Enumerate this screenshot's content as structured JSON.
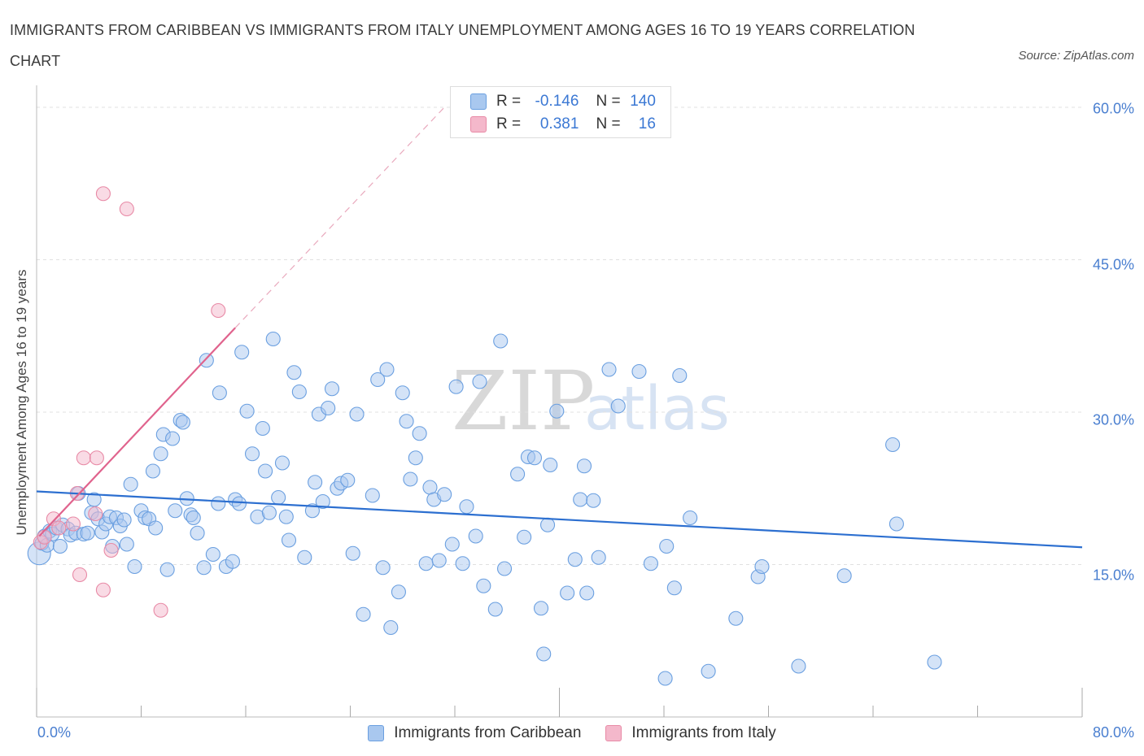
{
  "title_line1": "IMMIGRANTS FROM CARIBBEAN VS IMMIGRANTS FROM ITALY UNEMPLOYMENT AMONG AGES 16 TO 19 YEARS CORRELATION",
  "title_line2": "CHART",
  "source": "Source: ZipAtlas.com",
  "watermark": {
    "zip": "ZIP",
    "atlas": "atlas"
  },
  "colors": {
    "blue_fill": "#a9c8ef",
    "blue_stroke": "#6a9fe0",
    "blue_line": "#2c6fd0",
    "pink_fill": "#f4b8cb",
    "pink_stroke": "#e88aa6",
    "pink_line": "#e0638d",
    "tick_text": "#4a7fd0",
    "grid": "#e0e0e0"
  },
  "legend_top": {
    "rows": [
      {
        "r_label": "R =",
        "r_value": "-0.146",
        "n_label": "N =",
        "n_value": "140"
      },
      {
        "r_label": "R =",
        "r_value": "0.381",
        "n_label": "N =",
        "n_value": "16"
      }
    ]
  },
  "chart_data": {
    "type": "scatter",
    "title": "IMMIGRANTS FROM CARIBBEAN VS IMMIGRANTS FROM ITALY UNEMPLOYMENT AMONG AGES 16 TO 19 YEARS CORRELATION CHART",
    "xlabel": "",
    "ylabel": "Unemployment Among Ages 16 to 19 years",
    "xlim": [
      0,
      80
    ],
    "ylim": [
      0,
      60
    ],
    "x_tick_labels": [
      "0.0%",
      "80.0%"
    ],
    "y_ticks": [
      15,
      30,
      45,
      60
    ],
    "y_tick_labels": [
      "15.0%",
      "30.0%",
      "45.0%",
      "60.0%"
    ],
    "legend_position": "bottom-center",
    "series": [
      {
        "name": "Immigrants from Caribbean",
        "R": -0.146,
        "N": 140,
        "trend": {
          "x": [
            0,
            80
          ],
          "y": [
            22.2,
            16.7
          ]
        },
        "points": [
          [
            0.2,
            16.1
          ],
          [
            0.4,
            17.1
          ],
          [
            0.6,
            17.8
          ],
          [
            0.8,
            16.9
          ],
          [
            1.0,
            18.3
          ],
          [
            1.2,
            18.0
          ],
          [
            1.5,
            18.6
          ],
          [
            1.8,
            16.8
          ],
          [
            2.0,
            18.9
          ],
          [
            2.4,
            18.5
          ],
          [
            2.6,
            17.9
          ],
          [
            3.0,
            18.1
          ],
          [
            3.2,
            22.0
          ],
          [
            3.6,
            18.0
          ],
          [
            3.9,
            18.1
          ],
          [
            4.2,
            20.1
          ],
          [
            4.4,
            21.4
          ],
          [
            4.7,
            19.5
          ],
          [
            5.0,
            18.2
          ],
          [
            5.3,
            19.0
          ],
          [
            5.6,
            19.7
          ],
          [
            5.8,
            16.8
          ],
          [
            6.1,
            19.6
          ],
          [
            6.4,
            18.8
          ],
          [
            6.7,
            19.4
          ],
          [
            6.9,
            17.0
          ],
          [
            7.2,
            22.9
          ],
          [
            7.5,
            14.8
          ],
          [
            8.0,
            20.3
          ],
          [
            8.3,
            19.6
          ],
          [
            8.6,
            19.5
          ],
          [
            8.9,
            24.2
          ],
          [
            9.1,
            18.6
          ],
          [
            9.5,
            25.9
          ],
          [
            9.7,
            27.8
          ],
          [
            10.0,
            14.5
          ],
          [
            10.4,
            27.4
          ],
          [
            10.6,
            20.3
          ],
          [
            11.0,
            29.2
          ],
          [
            11.2,
            29.0
          ],
          [
            11.5,
            21.5
          ],
          [
            11.8,
            19.9
          ],
          [
            12.0,
            19.6
          ],
          [
            12.3,
            18.1
          ],
          [
            12.8,
            14.7
          ],
          [
            13.0,
            35.1
          ],
          [
            13.5,
            16.0
          ],
          [
            13.9,
            21.0
          ],
          [
            14.0,
            31.9
          ],
          [
            14.5,
            14.8
          ],
          [
            15.0,
            15.3
          ],
          [
            15.2,
            21.4
          ],
          [
            15.5,
            21.0
          ],
          [
            15.7,
            35.9
          ],
          [
            16.1,
            30.1
          ],
          [
            16.5,
            25.9
          ],
          [
            16.9,
            19.7
          ],
          [
            17.3,
            28.4
          ],
          [
            17.5,
            24.2
          ],
          [
            17.8,
            20.1
          ],
          [
            18.1,
            37.2
          ],
          [
            18.5,
            21.6
          ],
          [
            18.8,
            25.0
          ],
          [
            19.1,
            19.7
          ],
          [
            19.3,
            17.4
          ],
          [
            19.7,
            33.9
          ],
          [
            20.1,
            32.0
          ],
          [
            20.5,
            15.7
          ],
          [
            21.1,
            20.3
          ],
          [
            21.3,
            23.1
          ],
          [
            21.6,
            29.8
          ],
          [
            21.9,
            21.2
          ],
          [
            22.3,
            30.4
          ],
          [
            22.6,
            32.3
          ],
          [
            23.0,
            22.5
          ],
          [
            23.3,
            23.0
          ],
          [
            23.8,
            23.3
          ],
          [
            24.2,
            16.1
          ],
          [
            24.5,
            29.8
          ],
          [
            25.0,
            10.1
          ],
          [
            25.7,
            21.8
          ],
          [
            26.1,
            33.2
          ],
          [
            26.5,
            14.7
          ],
          [
            26.8,
            34.2
          ],
          [
            27.1,
            8.8
          ],
          [
            27.7,
            12.3
          ],
          [
            28.0,
            31.9
          ],
          [
            28.3,
            29.1
          ],
          [
            28.6,
            23.4
          ],
          [
            29.0,
            25.5
          ],
          [
            29.3,
            27.9
          ],
          [
            29.8,
            15.1
          ],
          [
            30.1,
            22.6
          ],
          [
            30.4,
            21.4
          ],
          [
            30.8,
            15.4
          ],
          [
            31.2,
            21.9
          ],
          [
            31.8,
            17.0
          ],
          [
            32.1,
            32.5
          ],
          [
            32.6,
            15.1
          ],
          [
            32.9,
            20.7
          ],
          [
            33.6,
            17.8
          ],
          [
            33.9,
            33.0
          ],
          [
            34.2,
            12.9
          ],
          [
            35.1,
            10.6
          ],
          [
            35.5,
            37.0
          ],
          [
            35.8,
            14.6
          ],
          [
            36.8,
            23.9
          ],
          [
            37.3,
            17.7
          ],
          [
            37.6,
            25.6
          ],
          [
            38.1,
            25.5
          ],
          [
            38.6,
            10.7
          ],
          [
            38.8,
            6.2
          ],
          [
            39.1,
            18.9
          ],
          [
            39.3,
            24.8
          ],
          [
            39.8,
            30.1
          ],
          [
            40.6,
            12.2
          ],
          [
            41.2,
            15.5
          ],
          [
            41.6,
            21.4
          ],
          [
            41.9,
            24.7
          ],
          [
            42.1,
            12.2
          ],
          [
            42.6,
            21.3
          ],
          [
            43.0,
            15.7
          ],
          [
            43.8,
            34.2
          ],
          [
            44.5,
            30.6
          ],
          [
            46.1,
            34.0
          ],
          [
            47.0,
            15.1
          ],
          [
            48.1,
            3.8
          ],
          [
            48.2,
            16.8
          ],
          [
            48.8,
            12.7
          ],
          [
            49.2,
            33.6
          ],
          [
            50.0,
            19.6
          ],
          [
            51.4,
            4.5
          ],
          [
            53.5,
            9.7
          ],
          [
            55.2,
            13.8
          ],
          [
            55.5,
            14.8
          ],
          [
            58.3,
            5.0
          ],
          [
            61.8,
            13.9
          ],
          [
            65.5,
            26.8
          ],
          [
            65.8,
            19.0
          ],
          [
            68.7,
            5.4
          ]
        ]
      },
      {
        "name": "Immigrants from Italy",
        "R": 0.381,
        "N": 16,
        "trend": {
          "x": [
            0.2,
            15.2
          ],
          "y": [
            17.8,
            38.3
          ]
        },
        "trend_dash": {
          "x": [
            15.2,
            31.2
          ],
          "y": [
            38.3,
            60.0
          ]
        },
        "points": [
          [
            0.3,
            17.2
          ],
          [
            0.6,
            17.7
          ],
          [
            1.3,
            19.5
          ],
          [
            1.7,
            18.6
          ],
          [
            2.8,
            19.0
          ],
          [
            3.1,
            22.0
          ],
          [
            3.3,
            14.0
          ],
          [
            3.6,
            25.5
          ],
          [
            4.5,
            20.0
          ],
          [
            4.6,
            25.5
          ],
          [
            5.1,
            12.5
          ],
          [
            5.7,
            16.4
          ],
          [
            5.1,
            51.5
          ],
          [
            6.9,
            50.0
          ],
          [
            9.5,
            10.5
          ],
          [
            13.9,
            40.0
          ]
        ]
      }
    ]
  }
}
